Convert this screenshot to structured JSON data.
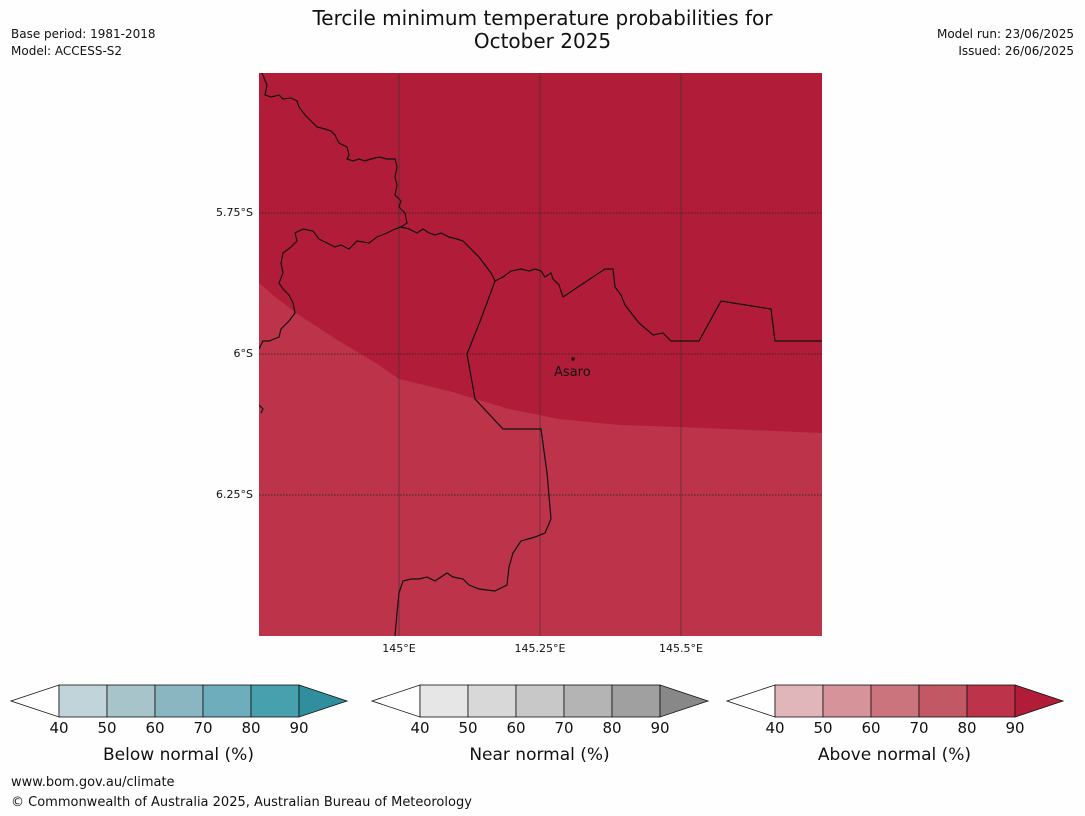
{
  "title_line1": "Tercile minimum temperature probabilities for",
  "title_line2": "October 2025",
  "base_period": "Base period: 1981-2018",
  "model": "Model: ACCESS-S2",
  "model_run": "Model run: 23/06/2025",
  "issued": "Issued: 26/06/2025",
  "map": {
    "lat_labels": [
      "5.75°S",
      "6°S",
      "6.25°S"
    ],
    "lon_labels": [
      "145°E",
      "145.25°E",
      "145.5°E"
    ],
    "place_label": "Asaro",
    "colors": {
      "above_90": "#b11d39",
      "above_80": "#bc334a"
    }
  },
  "legends": [
    {
      "title": "Below normal (%)",
      "ticks": [
        "40",
        "50",
        "60",
        "70",
        "80",
        "90"
      ],
      "colors": [
        "#c0d4da",
        "#a6c4ca",
        "#8ab6c1",
        "#6eadbb",
        "#47a0ae",
        "#2f8f9e"
      ]
    },
    {
      "title": "Near normal (%)",
      "ticks": [
        "40",
        "50",
        "60",
        "70",
        "80",
        "90"
      ],
      "colors": [
        "#e6e6e6",
        "#d8d8d8",
        "#c8c8c8",
        "#b4b4b4",
        "#a0a0a0",
        "#888888"
      ]
    },
    {
      "title": "Above normal (%)",
      "ticks": [
        "40",
        "50",
        "60",
        "70",
        "80",
        "90"
      ],
      "colors": [
        "#e1b6ba",
        "#d7939a",
        "#cc747d",
        "#c35865",
        "#bc334a",
        "#b11d39"
      ]
    }
  ],
  "footer_url": "www.bom.gov.au/climate",
  "footer_copyright": "© Commonwealth of Australia 2025, Australian Bureau of Meteorology"
}
